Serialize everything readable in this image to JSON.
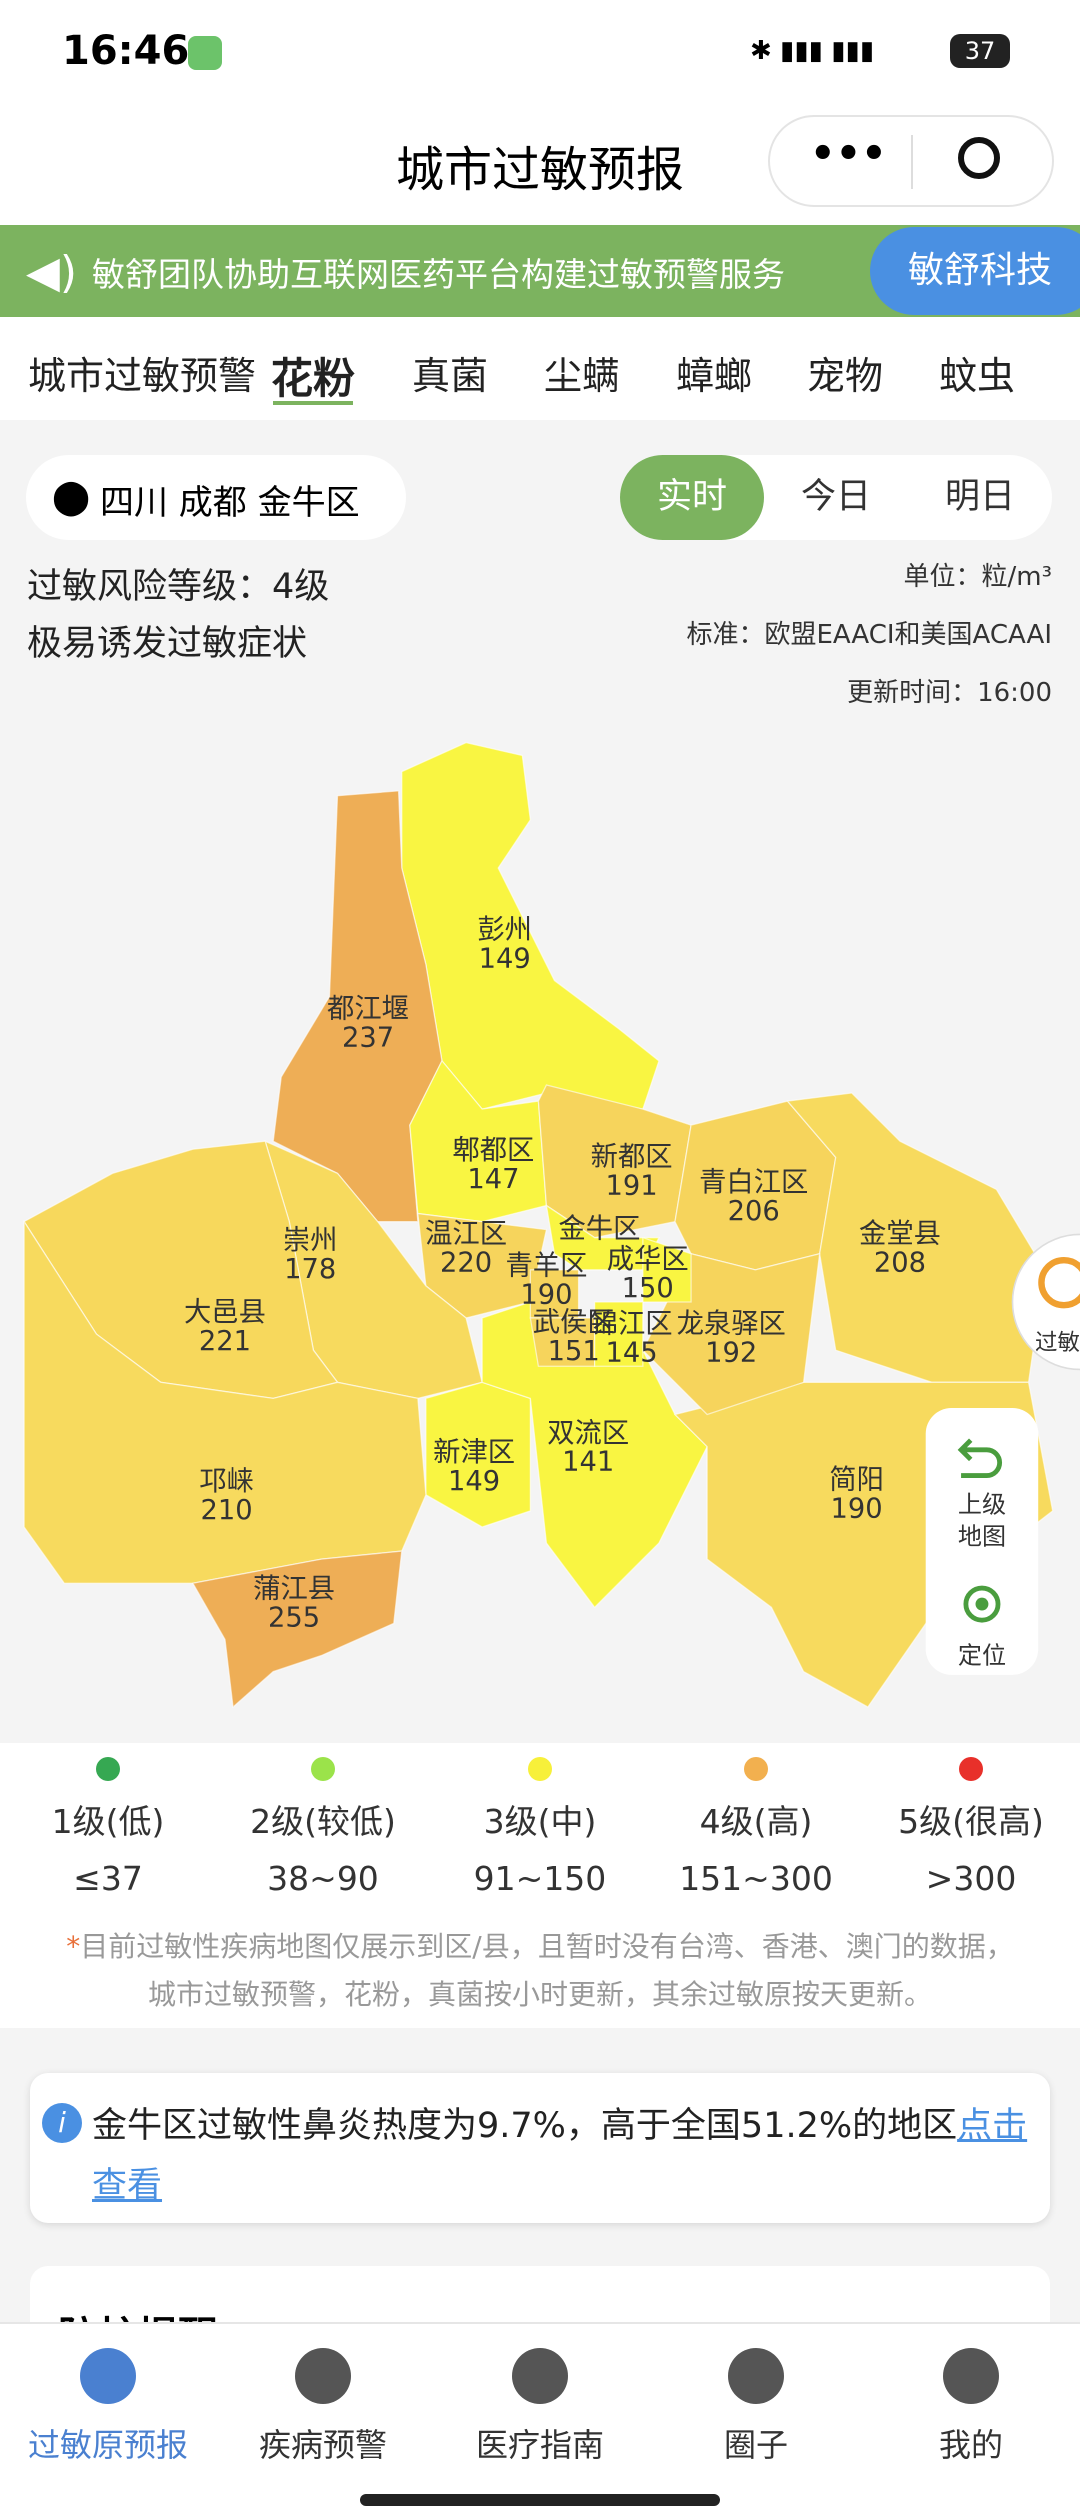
{
  "status": {
    "time": "16:46",
    "battery": "37"
  },
  "header": {
    "title": "城市过敏预报"
  },
  "banner": {
    "text": "敏舒团队协助互联网医药平台构建过敏预警服务",
    "button": "敏舒科技"
  },
  "tabs": {
    "items": [
      "城市过敏预警",
      "花粉",
      "真菌",
      "尘螨",
      "蟑螂",
      "宠物",
      "蚊虫"
    ],
    "active": 1
  },
  "location": "四川 成都 金牛区",
  "time_tabs": {
    "items": [
      "实时",
      "今日",
      "明日"
    ],
    "active": 0
  },
  "risk": {
    "level": "过敏风险等级：4级",
    "desc": "极易诱发过敏症状"
  },
  "meta": {
    "unit": "单位：粒/m³",
    "standard": "标准：欧盟EAACI和美国ACAAI",
    "updated": "更新时间：16:00"
  },
  "map": {
    "regions": [
      {
        "name": "彭州",
        "value": 149,
        "color": "#f9f542"
      },
      {
        "name": "都江堰",
        "value": 237,
        "color": "#eeae56"
      },
      {
        "name": "郫都区",
        "value": 147,
        "color": "#f9f542"
      },
      {
        "name": "新都区",
        "value": 191,
        "color": "#f6d45c"
      },
      {
        "name": "青白江区",
        "value": 206,
        "color": "#f6d45c"
      },
      {
        "name": "金堂县",
        "value": 208,
        "color": "#f7da5e"
      },
      {
        "name": "温江区",
        "value": 220,
        "color": "#f6d45c"
      },
      {
        "name": "崇州",
        "value": 178,
        "color": "#f7da5e"
      },
      {
        "name": "大邑县",
        "value": 221,
        "color": "#f7d85c"
      },
      {
        "name": "新津区",
        "value": 149,
        "color": "#f9f542"
      },
      {
        "name": "双流区",
        "value": 141,
        "color": "#f9f542"
      },
      {
        "name": "邛崃",
        "value": 210,
        "color": "#f7da5e"
      },
      {
        "name": "蒲江县",
        "value": 255,
        "color": "#eeae56"
      },
      {
        "name": "简阳",
        "value": 190,
        "color": "#f7da5e"
      },
      {
        "name": "龙泉驿区",
        "value": 192,
        "color": "#f6d45c"
      },
      {
        "name": "金牛区",
        "color": "#f9f542"
      },
      {
        "name": "青羊区",
        "value": 190,
        "color": "#f6d45c"
      },
      {
        "name": "成华区",
        "value": 150,
        "color": "#f9f542"
      },
      {
        "name": "武侯区",
        "value": 151,
        "color": "#f6d45c"
      },
      {
        "name": "锦江区",
        "value": 145,
        "color": "#f9f542"
      }
    ],
    "buttons": {
      "up": "上级",
      "up2": "地图",
      "locate": "定位"
    },
    "side": "过敏"
  },
  "legend": [
    {
      "label": "1级(低)",
      "range": "≤37",
      "color": "#36a852"
    },
    {
      "label": "2级(较低)",
      "range": "38~90",
      "color": "#9be34a"
    },
    {
      "label": "3级(中)",
      "range": "91~150",
      "color": "#f7f03a"
    },
    {
      "label": "4级(高)",
      "range": "151~300",
      "color": "#f2b04f"
    },
    {
      "label": "5级(很高)",
      "range": ">300",
      "color": "#e8302a"
    }
  ],
  "notes": {
    "star": "*",
    "line1": "目前过敏性疾病地图仅展示到区/县，且暂时没有台湾、香港、澳门的数据，",
    "line2": "城市过敏预警，花粉，真菌按小时更新，其余过敏原按天更新。"
  },
  "info": {
    "text": "金牛区过敏性鼻炎热度为9.7%，高于全国51.2%的地区",
    "link1": "点击",
    "link2": "查看"
  },
  "next_card": {
    "title": "防护提醒"
  },
  "nav": {
    "items": [
      "过敏原预报",
      "疾病预警",
      "医疗指南",
      "圈子",
      "我的"
    ],
    "active": 0
  }
}
